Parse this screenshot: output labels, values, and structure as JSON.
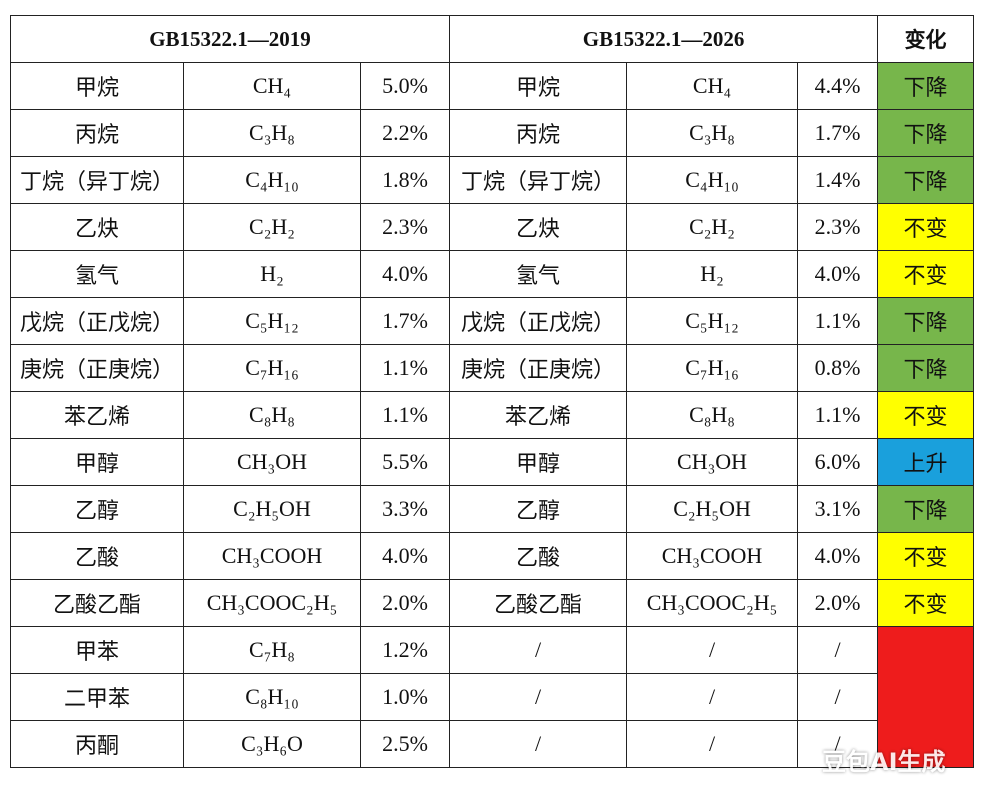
{
  "header": {
    "old": "GB15322.1—2019",
    "new": "GB15322.1—2026",
    "change": "变化"
  },
  "rows": [
    {
      "old": [
        "甲烷",
        "CH₄",
        "5.0%"
      ],
      "new": [
        "甲烷",
        "CH₄",
        "4.4%"
      ],
      "change": "下降",
      "change_color": "#77b64b"
    },
    {
      "old": [
        "丙烷",
        "C₃H₈",
        "2.2%"
      ],
      "new": [
        "丙烷",
        "C₃H₈",
        "1.7%"
      ],
      "change": "下降",
      "change_color": "#77b64b"
    },
    {
      "old": [
        "丁烷（异丁烷）",
        "C₄H₁₀",
        "1.8%"
      ],
      "new": [
        "丁烷（异丁烷）",
        "C₄H₁₀",
        "1.4%"
      ],
      "change": "下降",
      "change_color": "#77b64b"
    },
    {
      "old": [
        "乙炔",
        "C₂H₂",
        "2.3%"
      ],
      "new": [
        "乙炔",
        "C₂H₂",
        "2.3%"
      ],
      "change": "不变",
      "change_color": "#ffff00"
    },
    {
      "old": [
        "氢气",
        "H₂",
        "4.0%"
      ],
      "new": [
        "氢气",
        "H₂",
        "4.0%"
      ],
      "change": "不变",
      "change_color": "#ffff00"
    },
    {
      "old": [
        "戊烷（正戊烷）",
        "C₅H₁₂",
        "1.7%"
      ],
      "new": [
        "戊烷（正戊烷）",
        "C₅H₁₂",
        "1.1%"
      ],
      "change": "下降",
      "change_color": "#77b64b"
    },
    {
      "old": [
        "庚烷（正庚烷）",
        "C₇H₁₆",
        "1.1%"
      ],
      "new": [
        "庚烷（正庚烷）",
        "C₇H₁₆",
        "0.8%"
      ],
      "change": "下降",
      "change_color": "#77b64b"
    },
    {
      "old": [
        "苯乙烯",
        "C₈H₈",
        "1.1%"
      ],
      "new": [
        "苯乙烯",
        "C₈H₈",
        "1.1%"
      ],
      "change": "不变",
      "change_color": "#ffff00"
    },
    {
      "old": [
        "甲醇",
        "CH₃OH",
        "5.5%"
      ],
      "new": [
        "甲醇",
        "CH₃OH",
        "6.0%"
      ],
      "change": "上升",
      "change_color": "#1aa0dc"
    },
    {
      "old": [
        "乙醇",
        "C₂H₅OH",
        "3.3%"
      ],
      "new": [
        "乙醇",
        "C₂H₅OH",
        "3.1%"
      ],
      "change": "下降",
      "change_color": "#77b64b"
    },
    {
      "old": [
        "乙酸",
        "CH₃COOH",
        "4.0%"
      ],
      "new": [
        "乙酸",
        "CH₃COOH",
        "4.0%"
      ],
      "change": "不变",
      "change_color": "#ffff00"
    },
    {
      "old": [
        "乙酸乙酯",
        "CH₃COOC₂H₅",
        "2.0%"
      ],
      "new": [
        "乙酸乙酯",
        "CH₃COOC₂H₅",
        "2.0%"
      ],
      "change": "不变",
      "change_color": "#ffff00"
    },
    {
      "old": [
        "甲苯",
        "C₇H₈",
        "1.2%"
      ],
      "new": [
        "/",
        "/",
        "/"
      ],
      "change_color": "#ee1c1c"
    },
    {
      "old": [
        "二甲苯",
        "C₈H₁₀",
        "1.0%"
      ],
      "new": [
        "/",
        "/",
        "/"
      ],
      "change_color": "#ee1c1c"
    },
    {
      "old": [
        "丙酮",
        "C₃H₆O",
        "2.5%"
      ],
      "new": [
        "/",
        "/",
        "/"
      ],
      "change_color": "#ee1c1c"
    }
  ],
  "watermark": "豆包AI生成"
}
